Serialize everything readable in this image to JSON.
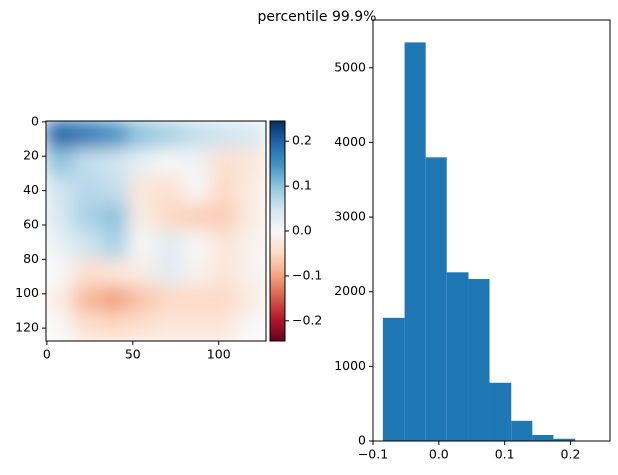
{
  "title": "percentile 99.9%",
  "chart_data": [
    {
      "type": "heatmap",
      "colormap": "RdBu",
      "xlim": [
        -0.5,
        127.5
      ],
      "ylim": [
        127.5,
        -0.5
      ],
      "xticks": [
        0,
        50,
        100
      ],
      "yticks": [
        0,
        20,
        40,
        60,
        80,
        100,
        120
      ],
      "z": [
        [
          0.2,
          0.18,
          0.15,
          0.1,
          0.08,
          0.06,
          0.05,
          0.04
        ],
        [
          0.1,
          0.06,
          0.05,
          0.02,
          0.0,
          0.01,
          -0.04,
          -0.03
        ],
        [
          0.05,
          0.07,
          0.06,
          -0.03,
          -0.04,
          0.0,
          -0.05,
          -0.02
        ],
        [
          0.04,
          0.08,
          0.1,
          -0.02,
          -0.05,
          -0.06,
          -0.06,
          -0.02
        ],
        [
          0.02,
          0.05,
          0.08,
          0.0,
          0.03,
          0.0,
          -0.03,
          -0.01
        ],
        [
          0.0,
          -0.04,
          -0.03,
          -0.02,
          0.03,
          -0.01,
          -0.03,
          -0.01
        ],
        [
          -0.02,
          -0.08,
          -0.1,
          -0.07,
          -0.05,
          -0.05,
          -0.05,
          -0.02
        ],
        [
          0.0,
          -0.04,
          -0.05,
          -0.04,
          -0.03,
          -0.03,
          -0.03,
          0.0
        ]
      ],
      "clim": [
        -0.245,
        0.245
      ],
      "cticks": [
        0.2,
        0.1,
        {
          "value": 0,
          "label": "0.0"
        },
        {
          "value": -0.1,
          "label": "−0.1"
        },
        {
          "value": -0.2,
          "label": "−0.2"
        }
      ]
    },
    {
      "type": "histogram",
      "color": "#1f77b4",
      "bins": [
        -0.085,
        -0.052,
        -0.02,
        0.012,
        0.045,
        0.077,
        0.11,
        0.142,
        0.174,
        0.207,
        0.239
      ],
      "values": [
        1650,
        5340,
        3800,
        2260,
        2170,
        780,
        270,
        80,
        30,
        5
      ],
      "xlim": [
        -0.1,
        0.26
      ],
      "ylim": [
        0,
        5640
      ],
      "xticks": [
        {
          "value": -0.1,
          "label": "−0.1"
        },
        {
          "value": 0,
          "label": "0.0"
        },
        0.1,
        0.2
      ],
      "yticks": [
        0,
        1000,
        2000,
        3000,
        4000,
        5000
      ]
    }
  ]
}
